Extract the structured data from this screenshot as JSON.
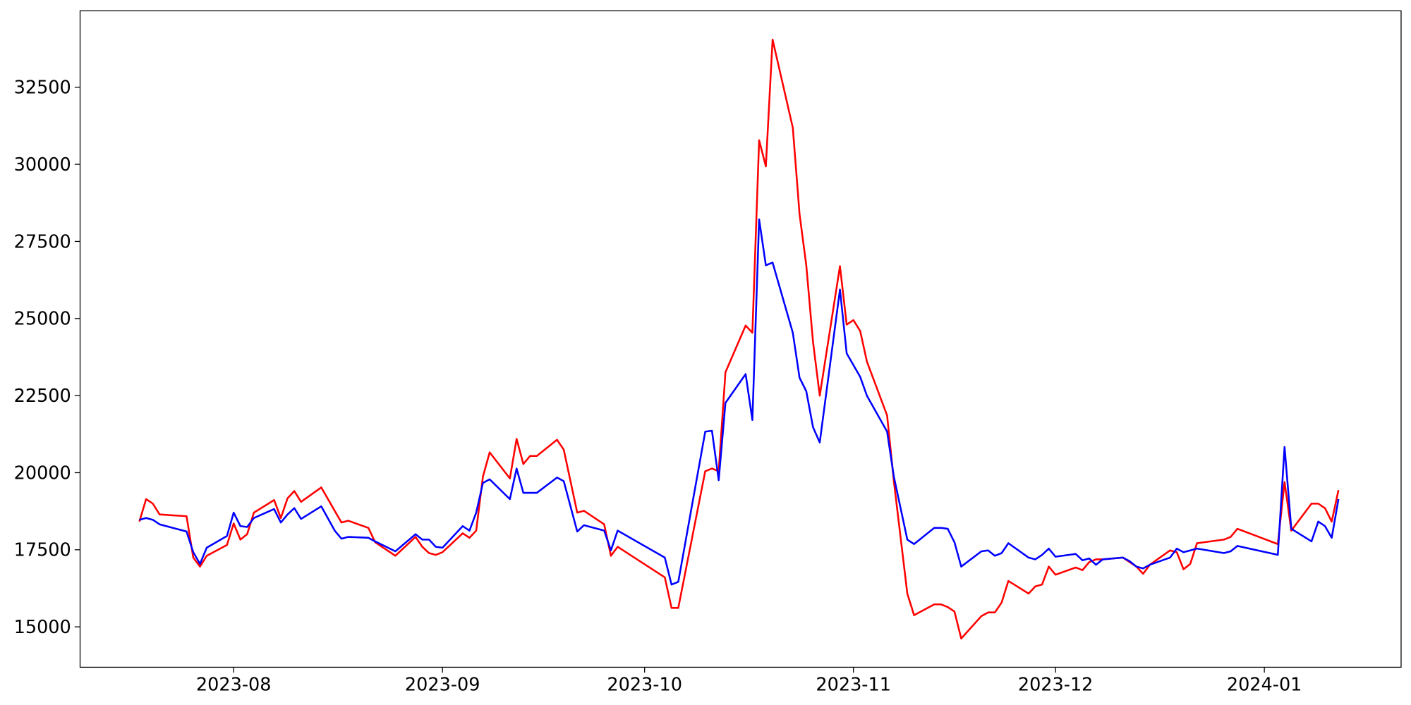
{
  "chart_data": {
    "type": "line",
    "x": [
      17,
      18,
      19,
      20,
      24,
      25,
      26,
      27,
      30,
      31,
      32,
      33,
      34,
      37,
      38,
      39,
      40,
      41,
      44,
      46,
      47,
      48,
      51,
      52,
      55,
      58,
      59,
      60,
      61,
      62,
      65,
      66,
      67,
      68,
      69,
      72,
      73,
      74,
      75,
      76,
      79,
      80,
      82,
      83,
      86,
      87,
      88,
      95,
      96,
      97,
      101,
      102,
      103,
      104,
      107,
      108,
      109,
      110,
      111,
      114,
      115,
      116,
      117,
      118,
      121,
      122,
      123,
      124,
      125,
      128,
      129,
      131,
      132,
      135,
      136,
      137,
      138,
      139,
      142,
      143,
      144,
      145,
      146,
      149,
      150,
      151,
      152,
      153,
      156,
      157,
      158,
      159,
      160,
      163,
      164,
      165,
      166,
      167,
      170,
      171,
      172,
      173,
      174,
      178,
      179,
      180,
      186,
      187,
      188,
      191,
      192,
      193,
      194,
      195
    ],
    "series": [
      {
        "color": "#ff0000",
        "values": [
          18413,
          19142,
          18996,
          18646,
          18588,
          17246,
          16954,
          17304,
          17654,
          18354,
          17829,
          18004,
          18704,
          19113,
          18530,
          19171,
          19404,
          19055,
          19521,
          18763,
          18384,
          18442,
          18209,
          17742,
          17304,
          17917,
          17596,
          17392,
          17334,
          17421,
          18034,
          17888,
          18121,
          19871,
          20659,
          19813,
          21096,
          20280,
          20542,
          20542,
          21067,
          20746,
          18704,
          18763,
          18325,
          17304,
          17596,
          16604,
          15613,
          15613,
          20047,
          20134,
          20047,
          23255,
          24772,
          24538,
          30781,
          29934,
          34047,
          31188,
          28389,
          26726,
          24247,
          22497,
          26697,
          24801,
          24947,
          24597,
          23605,
          21855,
          19725,
          16079,
          15379,
          15729,
          15729,
          15642,
          15496,
          14621,
          15350,
          15467,
          15467,
          15788,
          16488,
          16079,
          16313,
          16371,
          16954,
          16692,
          16925,
          16838,
          17100,
          17188,
          17188,
          17246,
          17100,
          16954,
          16721,
          17013,
          17479,
          17421,
          16867,
          17042,
          17713,
          17829,
          17917,
          18180,
          17684,
          19696,
          18121,
          18996,
          18996,
          18850,
          18413,
          19434
        ]
      },
      {
        "color": "#0000ff",
        "values": [
          18471,
          18530,
          18471,
          18325,
          18092,
          17421,
          17042,
          17567,
          17946,
          18704,
          18267,
          18238,
          18530,
          18821,
          18384,
          18646,
          18850,
          18500,
          18909,
          18121,
          17859,
          17917,
          17888,
          17771,
          17450,
          18004,
          17829,
          17829,
          17596,
          17567,
          18267,
          18121,
          18704,
          19667,
          19784,
          19142,
          20134,
          19346,
          19346,
          19346,
          19842,
          19725,
          18092,
          18296,
          18121,
          17479,
          18121,
          17246,
          16371,
          16459,
          21330,
          21359,
          19755,
          22263,
          23197,
          21709,
          28214,
          26726,
          26814,
          24538,
          23080,
          22643,
          21476,
          20980,
          25939,
          23868,
          23489,
          23109,
          22497,
          21330,
          19871,
          17829,
          17684,
          18209,
          18209,
          18180,
          17742,
          16954,
          17450,
          17479,
          17304,
          17392,
          17713,
          17246,
          17188,
          17334,
          17538,
          17275,
          17363,
          17159,
          17217,
          17013,
          17188,
          17246,
          17129,
          16954,
          16896,
          17013,
          17246,
          17538,
          17421,
          17479,
          17538,
          17392,
          17450,
          17625,
          17334,
          20834,
          18180,
          17771,
          18413,
          18267,
          17888,
          19142
        ]
      }
    ],
    "xlim": [
      8.2,
      204.3
    ],
    "xticks": [
      {
        "value": 31,
        "label": "2023-08"
      },
      {
        "value": 62,
        "label": "2023-09"
      },
      {
        "value": 92,
        "label": "2023-10"
      },
      {
        "value": 123,
        "label": "2023-11"
      },
      {
        "value": 153,
        "label": "2023-12"
      },
      {
        "value": 184,
        "label": "2024-01"
      }
    ],
    "ylim": [
      13690,
      34980
    ],
    "yticks": [
      15000,
      17500,
      20000,
      22500,
      25000,
      27500,
      30000,
      32500
    ]
  }
}
